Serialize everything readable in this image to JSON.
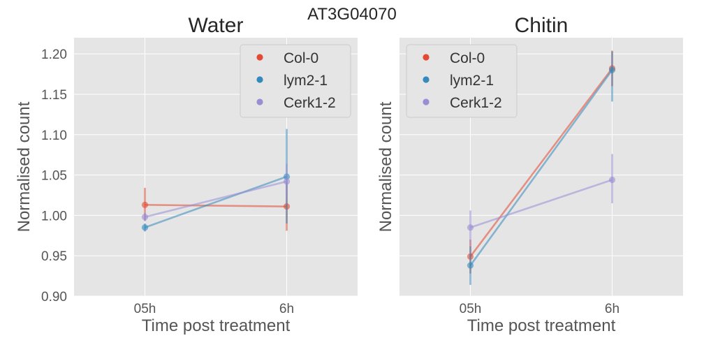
{
  "suptitle": "AT3G04070",
  "colors": {
    "Col-0": "#E24A33",
    "lym2-1": "#348ABD",
    "Cerk1-2": "#988ED5",
    "panel_bg": "#E5E5E5",
    "grid": "#FFFFFF"
  },
  "chart_data": [
    {
      "type": "line",
      "title": "Water",
      "xlabel": "Time post treatment",
      "ylabel": "Normalised count",
      "categories": [
        "05h",
        "6h"
      ],
      "ylim": [
        0.9,
        1.22
      ],
      "yticks": [
        "0.90",
        "0.95",
        "1.00",
        "1.05",
        "1.10",
        "1.15",
        "1.20"
      ],
      "grid": true,
      "legend_position": "upper-right",
      "series": [
        {
          "name": "Col-0",
          "values": [
            1.013,
            1.011
          ],
          "err_low": [
            0.993,
            0.981
          ],
          "err_high": [
            1.034,
            1.041
          ]
        },
        {
          "name": "lym2-1",
          "values": [
            0.985,
            1.048
          ],
          "err_low": [
            0.98,
            0.99
          ],
          "err_high": [
            0.99,
            1.107
          ]
        },
        {
          "name": "Cerk1-2",
          "values": [
            0.998,
            1.042
          ],
          "err_low": [
            0.993,
            1.02
          ],
          "err_high": [
            1.003,
            1.064
          ]
        }
      ]
    },
    {
      "type": "line",
      "title": "Chitin",
      "xlabel": "Time post treatment",
      "ylabel": "Normalised count",
      "categories": [
        "05h",
        "6h"
      ],
      "ylim": [
        0.9,
        1.22
      ],
      "yticks": [],
      "grid": true,
      "legend_position": "upper-left",
      "series": [
        {
          "name": "Col-0",
          "values": [
            0.949,
            1.182
          ],
          "err_low": [
            0.928,
            1.16
          ],
          "err_high": [
            0.97,
            1.204
          ]
        },
        {
          "name": "lym2-1",
          "values": [
            0.938,
            1.18
          ],
          "err_low": [
            0.914,
            1.141
          ],
          "err_high": [
            0.962,
            1.203
          ]
        },
        {
          "name": "Cerk1-2",
          "values": [
            0.985,
            1.044
          ],
          "err_low": [
            0.963,
            1.015
          ],
          "err_high": [
            1.006,
            1.076
          ]
        }
      ]
    }
  ]
}
